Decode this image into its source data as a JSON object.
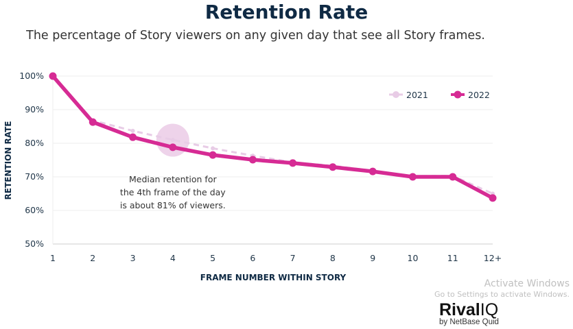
{
  "chart_data": {
    "type": "line",
    "title": "Retention Rate",
    "subtitle": "The percentage of Story viewers on any given day that see all Story frames.",
    "xlabel": "FRAME NUMBER WITHIN STORY",
    "ylabel": "RETENTION RATE",
    "categories": [
      "1",
      "2",
      "3",
      "4",
      "5",
      "6",
      "7",
      "8",
      "9",
      "10",
      "11",
      "12+"
    ],
    "yticks": [
      "50%",
      "60%",
      "70%",
      "80%",
      "90%",
      "100%"
    ],
    "ylim": [
      50,
      100
    ],
    "grid": true,
    "legend_placement": "top-right",
    "series": [
      {
        "name": "2021",
        "color": "#e8cce6",
        "style": "dashed",
        "values": [
          100,
          86.8,
          83.7,
          81,
          78.5,
          76.3,
          74.3,
          73.3,
          71.8,
          70.2,
          70.3,
          65
        ]
      },
      {
        "name": "2022",
        "color": "#d62b94",
        "style": "solid",
        "values": [
          100,
          86.3,
          81.8,
          78.8,
          76.5,
          75.1,
          74.1,
          72.9,
          71.6,
          70.0,
          70.0,
          63.7
        ]
      }
    ],
    "annotation": {
      "lines": [
        "Median retention for",
        "the 4th frame of the day",
        "is about 81% of viewers."
      ],
      "category": "4"
    }
  },
  "logo": {
    "name": "RivalIQ",
    "tagline": "by NetBase Quid"
  },
  "watermark": [
    "Activate Windows",
    "Go to Settings to activate Windows."
  ]
}
